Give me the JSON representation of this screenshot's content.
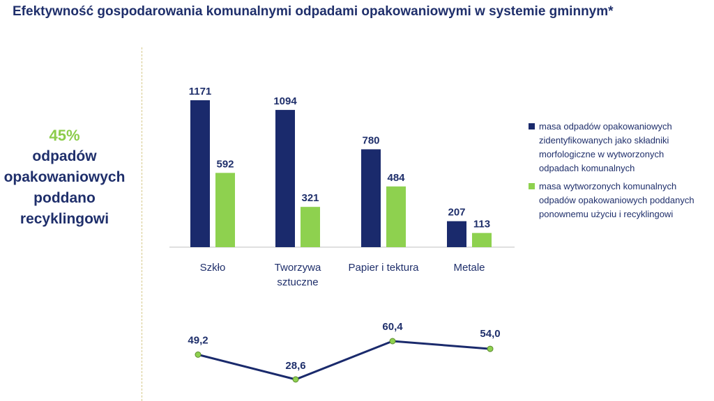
{
  "title": "Efektywność gospodarowania komunalnymi odpadami opakowaniowymi w systemie gminnym*",
  "stat": {
    "percent": "45%",
    "lines": [
      "odpadów",
      "opakowaniowych",
      "poddano",
      "recyklingowi"
    ]
  },
  "colors": {
    "dark": "#1a2a6c",
    "green": "#8ed14f",
    "text": "#1f2f6b",
    "axis": "#bfbfbf"
  },
  "chart_data": [
    {
      "type": "bar",
      "categories": [
        "Szkło",
        "Tworzywa sztuczne",
        "Papier i tektura",
        "Metale"
      ],
      "category_lines": [
        [
          "Szkło"
        ],
        [
          "Tworzywa",
          "sztuczne"
        ],
        [
          "Papier i tektura"
        ],
        [
          "Metale"
        ]
      ],
      "series": [
        {
          "name": "masa odpadów opakowaniowych zidentyfikowanych jako składniki morfologiczne w wytworzonych odpadach komunalnych",
          "values": [
            1171,
            1094,
            780,
            207
          ],
          "labels": [
            "1171",
            "1094",
            "780",
            "207"
          ],
          "color": "#1a2a6c"
        },
        {
          "name": "masa wytworzonych komunalnych odpadów opakowaniowych poddanych ponownemu użyciu i recyklingowi",
          "values": [
            592,
            321,
            484,
            113
          ],
          "labels": [
            "592",
            "321",
            "484",
            "113"
          ],
          "color": "#8ed14f"
        }
      ],
      "ylim": [
        0,
        1171
      ],
      "legend": "right",
      "grid": false
    },
    {
      "type": "line",
      "categories": [
        "Szkło",
        "Tworzywa sztuczne",
        "Papier i tektura",
        "Metale"
      ],
      "values": [
        49.2,
        28.6,
        60.4,
        54.0
      ],
      "labels": [
        "49,2",
        "28,6",
        "60,4",
        "54,0"
      ],
      "line_color": "#1a2a6c",
      "marker_color": "#8ed14f",
      "ylim": [
        28.6,
        60.4
      ]
    }
  ]
}
